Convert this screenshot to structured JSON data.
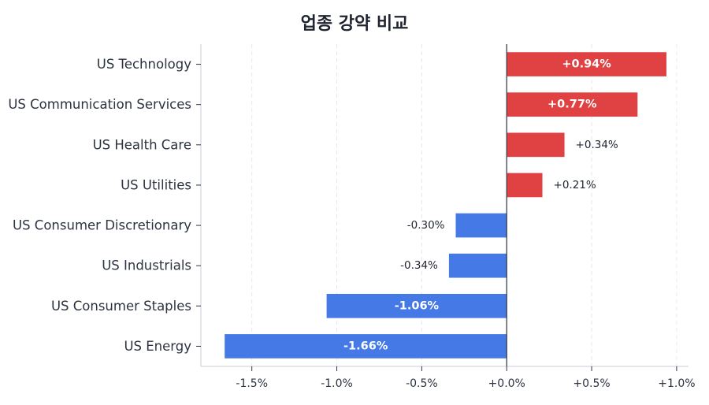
{
  "chart_data": {
    "type": "bar",
    "orientation": "horizontal",
    "title": "업종 강약 비교",
    "xlabel": "",
    "ylabel": "",
    "categories": [
      "US Technology",
      "US Communication Services",
      "US Health Care",
      "US Utilities",
      "US Consumer Discretionary",
      "US Industrials",
      "US Consumer Staples",
      "US Energy"
    ],
    "values": [
      0.94,
      0.77,
      0.34,
      0.21,
      -0.3,
      -0.34,
      -1.06,
      -1.66
    ],
    "value_labels": [
      "+0.94%",
      "+0.77%",
      "+0.34%",
      "+0.21%",
      "-0.30%",
      "-0.34%",
      "-1.06%",
      "-1.66%"
    ],
    "xlim": [
      -1.8,
      1.07
    ],
    "xticks": [
      -1.5,
      -1.0,
      -0.5,
      0.0,
      0.5,
      1.0
    ],
    "xtick_labels": [
      "-1.5%",
      "-1.0%",
      "-0.5%",
      "+0.0%",
      "+0.5%",
      "+1.0%"
    ],
    "grid": "vertical-dashed",
    "colors": {
      "positive": "#e04142",
      "negative": "#4479e6",
      "zero_line": "#3a3f4b",
      "grid": "#e6e8ee",
      "axis": "#c8ccd4",
      "label": "#2c3340"
    }
  }
}
